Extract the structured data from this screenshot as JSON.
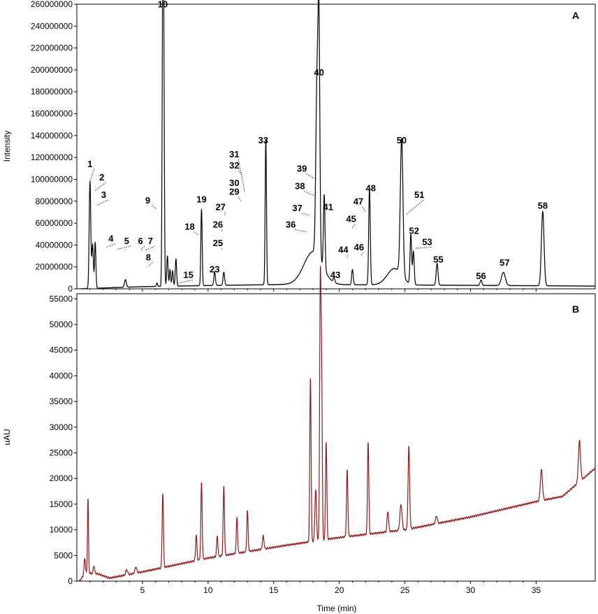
{
  "chart_data": [
    {
      "type": "line",
      "panel_label": "A",
      "ylabel": "Intensity",
      "xlabel": "",
      "xlim": [
        0,
        39.5
      ],
      "ylim": [
        0,
        260000000
      ],
      "y_ticks": [
        "0",
        "20000000",
        "40000000",
        "60000000",
        "80000000",
        "100000000",
        "120000000",
        "140000000",
        "160000000",
        "180000000",
        "200000000",
        "220000000",
        "240000000",
        "260000000"
      ],
      "y_tick_values": [
        0,
        20000000,
        40000000,
        60000000,
        80000000,
        100000000,
        120000000,
        140000000,
        160000000,
        180000000,
        200000000,
        220000000,
        240000000,
        260000000
      ],
      "x_ticks": [
        5,
        10,
        15,
        20,
        25,
        30,
        35
      ],
      "color": "#000000",
      "baseline": [
        [
          0.3,
          0
        ],
        [
          5,
          2000000
        ],
        [
          10,
          3000000
        ],
        [
          16,
          4000000
        ],
        [
          25,
          3500000
        ],
        [
          39.5,
          2500000
        ]
      ],
      "peaks": [
        {
          "t": 1.0,
          "h": 98000000,
          "w": 0.06
        },
        {
          "t": 1.2,
          "h": 40000000,
          "w": 0.06
        },
        {
          "t": 1.4,
          "h": 42000000,
          "w": 0.05
        },
        {
          "t": 3.7,
          "h": 7000000,
          "w": 0.07
        },
        {
          "t": 6.1,
          "h": 3000000,
          "w": 0.05
        },
        {
          "t": 6.55,
          "h": 258000000,
          "w": 0.05
        },
        {
          "t": 6.62,
          "h": 180000000,
          "w": 0.05
        },
        {
          "t": 6.9,
          "h": 28000000,
          "w": 0.05
        },
        {
          "t": 7.1,
          "h": 15000000,
          "w": 0.05
        },
        {
          "t": 7.3,
          "h": 14000000,
          "w": 0.05
        },
        {
          "t": 7.55,
          "h": 25000000,
          "w": 0.05
        },
        {
          "t": 9.5,
          "h": 70000000,
          "w": 0.05
        },
        {
          "t": 10.5,
          "h": 12000000,
          "w": 0.06
        },
        {
          "t": 11.2,
          "h": 12000000,
          "w": 0.06
        },
        {
          "t": 14.4,
          "h": 133000000,
          "w": 0.05
        },
        {
          "t": 18.3,
          "h": 155000000,
          "w": 0.09
        },
        {
          "t": 18.45,
          "h": 195000000,
          "w": 0.07
        },
        {
          "t": 18.85,
          "h": 68000000,
          "w": 0.06
        },
        {
          "t": 19.6,
          "h": 5000000,
          "w": 0.06
        },
        {
          "t": 21.0,
          "h": 14000000,
          "w": 0.06
        },
        {
          "t": 22.3,
          "h": 88000000,
          "w": 0.06
        },
        {
          "t": 24.75,
          "h": 125000000,
          "w": 0.1
        },
        {
          "t": 25.45,
          "h": 45000000,
          "w": 0.06
        },
        {
          "t": 25.65,
          "h": 30000000,
          "w": 0.06
        },
        {
          "t": 27.45,
          "h": 20000000,
          "w": 0.07
        },
        {
          "t": 30.8,
          "h": 5000000,
          "w": 0.07
        },
        {
          "t": 32.5,
          "h": 12000000,
          "w": 0.15
        },
        {
          "t": 35.5,
          "h": 68000000,
          "w": 0.1
        }
      ],
      "humps": [
        {
          "t": 18.0,
          "h": 30000000,
          "w": 0.7
        },
        {
          "t": 24.2,
          "h": 15000000,
          "w": 0.55
        }
      ],
      "peak_labels": [
        {
          "text": "1",
          "t": 1.0,
          "y": 111000000,
          "tip_t": 1.0,
          "tip_y": 98000000
        },
        {
          "text": "2",
          "t": 1.9,
          "y": 99000000,
          "tip_t": 1.3,
          "tip_y": 89000000
        },
        {
          "text": "3",
          "t": 2.05,
          "y": 83000000,
          "tip_t": 1.5,
          "tip_y": 76000000
        },
        {
          "text": "4",
          "t": 2.6,
          "y": 43000000,
          "tip_t": 2.2,
          "tip_y": 38000000
        },
        {
          "text": "5",
          "t": 3.8,
          "y": 41000000,
          "tip_t": 3.0,
          "tip_y": 36000000
        },
        {
          "text": "6",
          "t": 4.85,
          "y": 41000000,
          "tip_t": 4.85,
          "tip_y": 35000000
        },
        {
          "text": "7",
          "t": 5.6,
          "y": 41000000,
          "tip_t": 5.2,
          "tip_y": 35000000
        },
        {
          "text": "8",
          "t": 5.45,
          "y": 26000000,
          "tip_t": 5.4,
          "tip_y": 20000000
        },
        {
          "text": "9",
          "t": 5.4,
          "y": 78000000,
          "tip_t": 6.05,
          "tip_y": 73000000
        },
        {
          "text": "10",
          "t": 6.55,
          "y": 257000000
        },
        {
          "text": "15",
          "t": 8.5,
          "y": 10000000,
          "tip_t": 7.7,
          "tip_y": 5000000
        },
        {
          "text": "18",
          "t": 8.6,
          "y": 54000000,
          "tip_t": 9.3,
          "tip_y": 49000000
        },
        {
          "text": "19",
          "t": 9.5,
          "y": 79000000
        },
        {
          "text": "23",
          "t": 10.5,
          "y": 15000000
        },
        {
          "text": "25",
          "t": 10.75,
          "y": 39000000,
          "tip_t": 11.05,
          "tip_y": 36000000
        },
        {
          "text": "26",
          "t": 10.75,
          "y": 56000000,
          "tip_t": 11.1,
          "tip_y": 52000000
        },
        {
          "text": "27",
          "t": 10.95,
          "y": 72000000,
          "tip_t": 11.3,
          "tip_y": 67000000
        },
        {
          "text": "29",
          "t": 12.0,
          "y": 86000000,
          "tip_t": 12.5,
          "tip_y": 80000000
        },
        {
          "text": "30",
          "t": 12.0,
          "y": 94000000
        },
        {
          "text": "31",
          "t": 12.0,
          "y": 120000000,
          "tip_t": 12.8,
          "tip_y": 88000000
        },
        {
          "text": "32",
          "t": 12.0,
          "y": 110000000,
          "tip_t": 12.6,
          "tip_y": 104000000
        },
        {
          "text": "33",
          "t": 14.2,
          "y": 133000000
        },
        {
          "text": "36",
          "t": 16.3,
          "y": 56000000,
          "tip_t": 17.5,
          "tip_y": 52000000
        },
        {
          "text": "37",
          "t": 16.8,
          "y": 71000000,
          "tip_t": 17.75,
          "tip_y": 67000000
        },
        {
          "text": "38",
          "t": 17.0,
          "y": 91000000,
          "tip_t": 18.1,
          "tip_y": 85000000
        },
        {
          "text": "39",
          "t": 17.15,
          "y": 107000000,
          "tip_t": 18.25,
          "tip_y": 100000000
        },
        {
          "text": "40",
          "t": 18.45,
          "y": 195000000
        },
        {
          "text": "41",
          "t": 19.15,
          "y": 72000000
        },
        {
          "text": "43",
          "t": 19.7,
          "y": 10000000
        },
        {
          "text": "44",
          "t": 20.3,
          "y": 33000000,
          "tip_t": 20.6,
          "tip_y": 28000000
        },
        {
          "text": "45",
          "t": 20.9,
          "y": 61000000,
          "tip_t": 20.95,
          "tip_y": 55000000
        },
        {
          "text": "46",
          "t": 21.5,
          "y": 35000000,
          "tip_t": 21.6,
          "tip_y": 30000000
        },
        {
          "text": "47",
          "t": 21.45,
          "y": 77000000,
          "tip_t": 22.0,
          "tip_y": 70000000
        },
        {
          "text": "48",
          "t": 22.4,
          "y": 89000000
        },
        {
          "text": "50",
          "t": 24.75,
          "y": 133000000
        },
        {
          "text": "51",
          "t": 26.1,
          "y": 83000000,
          "tip_t": 25.1,
          "tip_y": 68000000
        },
        {
          "text": "52",
          "t": 25.7,
          "y": 50000000
        },
        {
          "text": "53",
          "t": 26.7,
          "y": 40000000,
          "tip_t": 25.8,
          "tip_y": 37000000
        },
        {
          "text": "55",
          "t": 27.55,
          "y": 24000000
        },
        {
          "text": "56",
          "t": 30.8,
          "y": 9000000
        },
        {
          "text": "57",
          "t": 32.6,
          "y": 21000000
        },
        {
          "text": "58",
          "t": 35.5,
          "y": 73000000
        }
      ]
    },
    {
      "type": "line",
      "panel_label": "B",
      "ylabel": "uAU",
      "xlabel": "Time (min)",
      "xlim": [
        0,
        39.5
      ],
      "ylim": [
        0,
        56000
      ],
      "y_ticks": [
        "0",
        "5000",
        "10000",
        "15000",
        "20000",
        "25000",
        "30000",
        "35000",
        "40000",
        "45000",
        "50000",
        "55000"
      ],
      "y_tick_values": [
        0,
        5000,
        10000,
        15000,
        20000,
        25000,
        30000,
        35000,
        40000,
        45000,
        50000,
        55000
      ],
      "x_ticks": [
        "5",
        "10",
        "15",
        "20",
        "25",
        "30",
        "35"
      ],
      "x_tick_values": [
        5,
        10,
        15,
        20,
        25,
        30,
        35
      ],
      "color": "#8b1a1a",
      "baseline": [
        [
          0.2,
          0
        ],
        [
          0.6,
          1500
        ],
        [
          1.5,
          1500
        ],
        [
          2.5,
          600
        ],
        [
          5,
          1800
        ],
        [
          10,
          4500
        ],
        [
          16,
          7000
        ],
        [
          20,
          8500
        ],
        [
          25,
          10000
        ],
        [
          30,
          12500
        ],
        [
          35,
          15500
        ],
        [
          37,
          16500
        ],
        [
          39.5,
          22000
        ]
      ],
      "peaks": [
        {
          "t": 0.6,
          "h": 3000,
          "w": 0.05
        },
        {
          "t": 0.85,
          "h": 14500,
          "w": 0.04
        },
        {
          "t": 1.3,
          "h": 1500,
          "w": 0.05
        },
        {
          "t": 3.8,
          "h": 1000,
          "w": 0.07
        },
        {
          "t": 4.5,
          "h": 1200,
          "w": 0.07
        },
        {
          "t": 6.55,
          "h": 14500,
          "w": 0.05
        },
        {
          "t": 9.1,
          "h": 5000,
          "w": 0.05
        },
        {
          "t": 9.5,
          "h": 15000,
          "w": 0.05
        },
        {
          "t": 10.7,
          "h": 4000,
          "w": 0.05
        },
        {
          "t": 11.2,
          "h": 13500,
          "w": 0.05
        },
        {
          "t": 12.2,
          "h": 7000,
          "w": 0.05
        },
        {
          "t": 13.0,
          "h": 8000,
          "w": 0.05
        },
        {
          "t": 14.2,
          "h": 2500,
          "w": 0.06
        },
        {
          "t": 17.8,
          "h": 32000,
          "w": 0.05
        },
        {
          "t": 18.2,
          "h": 10000,
          "w": 0.06
        },
        {
          "t": 18.55,
          "h": 48000,
          "w": 0.05
        },
        {
          "t": 18.65,
          "h": 32000,
          "w": 0.05
        },
        {
          "t": 19.0,
          "h": 19000,
          "w": 0.05
        },
        {
          "t": 20.6,
          "h": 13000,
          "w": 0.05
        },
        {
          "t": 22.2,
          "h": 18000,
          "w": 0.05
        },
        {
          "t": 23.7,
          "h": 4000,
          "w": 0.06
        },
        {
          "t": 24.7,
          "h": 5000,
          "w": 0.08
        },
        {
          "t": 25.3,
          "h": 16000,
          "w": 0.06
        },
        {
          "t": 27.4,
          "h": 1500,
          "w": 0.07
        },
        {
          "t": 35.4,
          "h": 6000,
          "w": 0.08
        },
        {
          "t": 38.3,
          "h": 8000,
          "w": 0.08
        }
      ]
    }
  ]
}
